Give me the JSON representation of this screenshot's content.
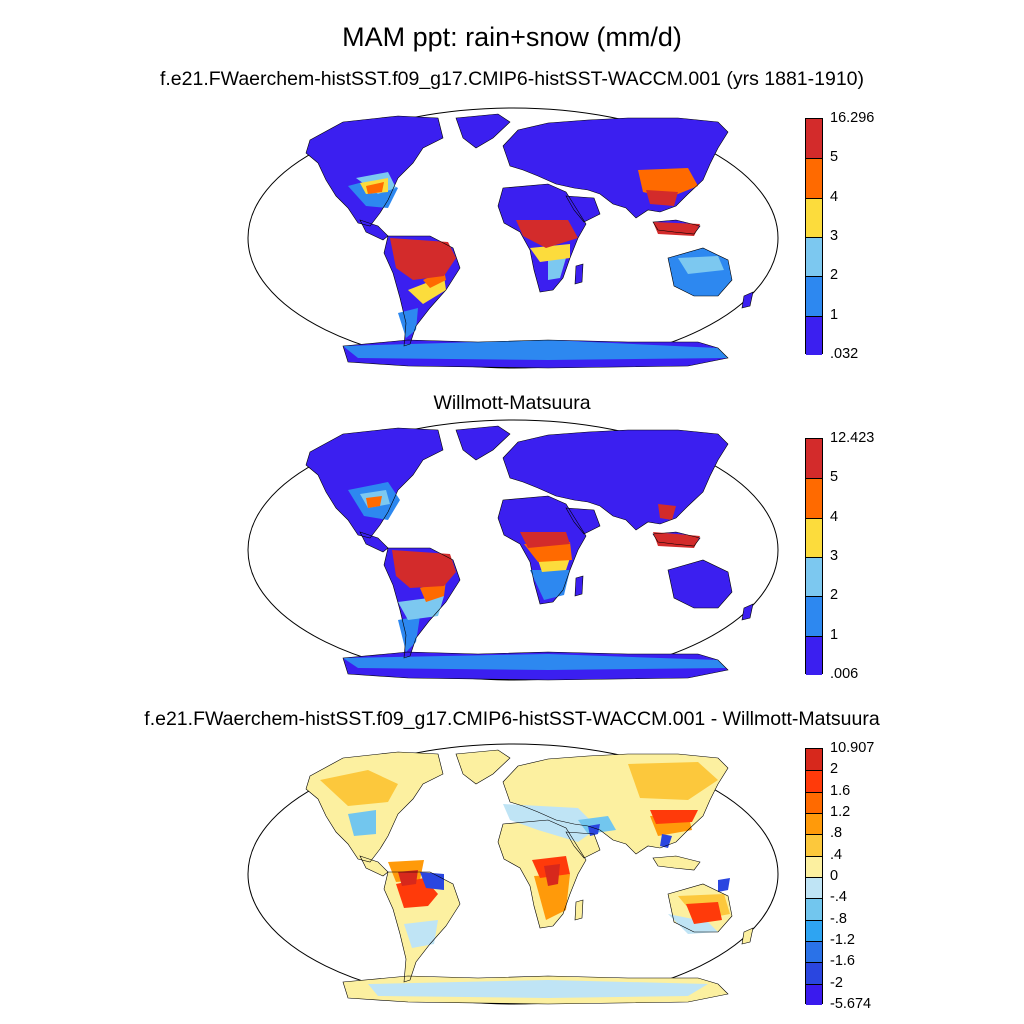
{
  "title": "MAM ppt: rain+snow (mm/d)",
  "panels": [
    {
      "subtitle": "f.e21.FWaerchem-histSST.f09_g17.CMIP6-histSST-WACCM.001 (yrs 1881-1910)",
      "colorbar": {
        "labels": [
          "16.296",
          "5",
          "4",
          "3",
          "2",
          "1",
          ".032"
        ],
        "colors": [
          "#d32b2b",
          "#ff6a00",
          "#fcdc3c",
          "#7cc8f0",
          "#2d88f0",
          "#3b1ff0"
        ]
      }
    },
    {
      "subtitle": "Willmott-Matsuura",
      "colorbar": {
        "labels": [
          "12.423",
          "5",
          "4",
          "3",
          "2",
          "1",
          ".006"
        ],
        "colors": [
          "#d32b2b",
          "#ff6a00",
          "#fcdc3c",
          "#7cc8f0",
          "#2d88f0",
          "#3b1ff0"
        ]
      }
    },
    {
      "subtitle": "f.e21.FWaerchem-histSST.f09_g17.CMIP6-histSST-WACCM.001 - Willmott-Matsuura",
      "colorbar": {
        "labels": [
          "10.907",
          "2",
          "1.6",
          "1.2",
          ".8",
          ".4",
          "0",
          "-.4",
          "-.8",
          "-1.2",
          "-1.6",
          "-2",
          "-5.674"
        ],
        "colors": [
          "#d7281c",
          "#ff3a0a",
          "#ff6a00",
          "#ff9a0a",
          "#fcc83c",
          "#fcf0a0",
          "#bfe4f5",
          "#72c6ee",
          "#2ea4f2",
          "#2a72e8",
          "#2a46e0",
          "#3a1aee"
        ]
      }
    }
  ]
}
